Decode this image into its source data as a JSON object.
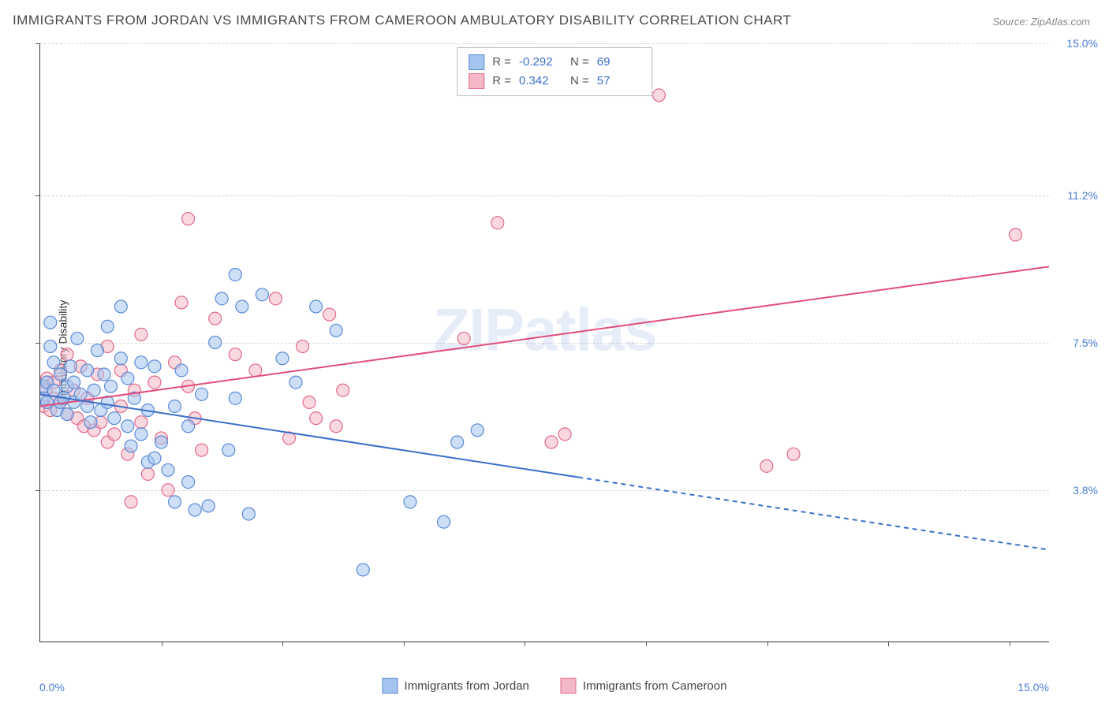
{
  "title": "IMMIGRANTS FROM JORDAN VS IMMIGRANTS FROM CAMEROON AMBULATORY DISABILITY CORRELATION CHART",
  "source": "Source: ZipAtlas.com",
  "watermark": {
    "bold": "ZIP",
    "light": "atlas"
  },
  "ylabel": "Ambulatory Disability",
  "axes": {
    "xlim": [
      0,
      15
    ],
    "ylim": [
      0,
      15
    ],
    "x_tick_positions_pct": [
      12,
      24,
      36,
      48,
      60,
      72,
      84,
      96
    ],
    "y_gridlines": [
      {
        "value": 3.8,
        "label": "3.8%"
      },
      {
        "value": 7.5,
        "label": "7.5%"
      },
      {
        "value": 11.2,
        "label": "11.2%"
      },
      {
        "value": 15.0,
        "label": "15.0%"
      }
    ],
    "xtick_left": "0.0%",
    "xtick_right": "15.0%"
  },
  "colors": {
    "series_a_fill": "#a3c4ef",
    "series_a_stroke": "#5b8ad6",
    "series_b_fill": "#f5b8c7",
    "series_b_stroke": "#e06a8a",
    "grid": "#d8d8d8",
    "axis": "#333333",
    "ytick_text": "#4a7dd4",
    "legend_stat": "#3b6fc9"
  },
  "legend_top": {
    "rows": [
      {
        "swatch_fill": "#a3c4ef",
        "swatch_stroke": "#5b8ad6",
        "r_label": "R =",
        "r_value": "-0.292",
        "n_label": "N =",
        "n_value": "69"
      },
      {
        "swatch_fill": "#f5b8c7",
        "swatch_stroke": "#e06a8a",
        "r_label": "R =",
        "r_value": " 0.342",
        "n_label": "N =",
        "n_value": "57"
      }
    ]
  },
  "legend_bottom": {
    "items": [
      {
        "swatch_fill": "#a3c4ef",
        "swatch_stroke": "#5b8ad6",
        "label": "Immigrants from Jordan"
      },
      {
        "swatch_fill": "#f5b8c7",
        "swatch_stroke": "#e06a8a",
        "label": "Immigrants from Cameroon"
      }
    ]
  },
  "trendlines": {
    "series_a": {
      "x1": 0,
      "y1": 6.2,
      "x2": 15,
      "y2": 2.3,
      "solid_until_x": 8.0,
      "color": "#3b6fc9",
      "width": 2
    },
    "series_b": {
      "x1": 0,
      "y1": 5.9,
      "x2": 15,
      "y2": 9.4,
      "color": "#e24d7a",
      "width": 2
    }
  },
  "marker_radius": 8,
  "marker_opacity": 0.55,
  "series_a_points": [
    [
      0.05,
      6.1
    ],
    [
      0.05,
      6.4
    ],
    [
      0.1,
      6.0
    ],
    [
      0.1,
      6.5
    ],
    [
      0.15,
      7.4
    ],
    [
      0.15,
      8.0
    ],
    [
      0.2,
      6.3
    ],
    [
      0.2,
      7.0
    ],
    [
      0.25,
      5.8
    ],
    [
      0.3,
      6.0
    ],
    [
      0.3,
      6.7
    ],
    [
      0.35,
      6.1
    ],
    [
      0.4,
      6.4
    ],
    [
      0.4,
      5.7
    ],
    [
      0.45,
      6.9
    ],
    [
      0.5,
      6.0
    ],
    [
      0.5,
      6.5
    ],
    [
      0.55,
      7.6
    ],
    [
      0.6,
      6.2
    ],
    [
      0.7,
      5.9
    ],
    [
      0.7,
      6.8
    ],
    [
      0.75,
      5.5
    ],
    [
      0.8,
      6.3
    ],
    [
      0.85,
      7.3
    ],
    [
      0.9,
      5.8
    ],
    [
      0.95,
      6.7
    ],
    [
      1.0,
      6.0
    ],
    [
      1.0,
      7.9
    ],
    [
      1.05,
      6.4
    ],
    [
      1.1,
      5.6
    ],
    [
      1.2,
      7.1
    ],
    [
      1.2,
      8.4
    ],
    [
      1.3,
      5.4
    ],
    [
      1.3,
      6.6
    ],
    [
      1.35,
      4.9
    ],
    [
      1.4,
      6.1
    ],
    [
      1.5,
      5.2
    ],
    [
      1.5,
      7.0
    ],
    [
      1.6,
      5.8
    ],
    [
      1.6,
      4.5
    ],
    [
      1.7,
      4.6
    ],
    [
      1.7,
      6.9
    ],
    [
      1.8,
      5.0
    ],
    [
      1.9,
      4.3
    ],
    [
      2.0,
      5.9
    ],
    [
      2.0,
      3.5
    ],
    [
      2.1,
      6.8
    ],
    [
      2.2,
      4.0
    ],
    [
      2.2,
      5.4
    ],
    [
      2.3,
      3.3
    ],
    [
      2.4,
      6.2
    ],
    [
      2.5,
      3.4
    ],
    [
      2.6,
      7.5
    ],
    [
      2.7,
      8.6
    ],
    [
      2.8,
      4.8
    ],
    [
      2.9,
      6.1
    ],
    [
      2.9,
      9.2
    ],
    [
      3.0,
      8.4
    ],
    [
      3.1,
      3.2
    ],
    [
      3.3,
      8.7
    ],
    [
      3.6,
      7.1
    ],
    [
      3.8,
      6.5
    ],
    [
      4.1,
      8.4
    ],
    [
      4.4,
      7.8
    ],
    [
      4.8,
      1.8
    ],
    [
      5.5,
      3.5
    ],
    [
      6.0,
      3.0
    ],
    [
      6.2,
      5.0
    ],
    [
      6.5,
      5.3
    ]
  ],
  "series_b_points": [
    [
      0.05,
      5.9
    ],
    [
      0.08,
      6.3
    ],
    [
      0.1,
      6.6
    ],
    [
      0.15,
      5.8
    ],
    [
      0.2,
      6.1
    ],
    [
      0.2,
      6.5
    ],
    [
      0.3,
      6.0
    ],
    [
      0.3,
      6.8
    ],
    [
      0.4,
      5.7
    ],
    [
      0.4,
      7.2
    ],
    [
      0.5,
      6.3
    ],
    [
      0.55,
      5.6
    ],
    [
      0.6,
      6.9
    ],
    [
      0.65,
      5.4
    ],
    [
      0.7,
      6.1
    ],
    [
      0.8,
      5.3
    ],
    [
      0.85,
      6.7
    ],
    [
      0.9,
      5.5
    ],
    [
      1.0,
      5.0
    ],
    [
      1.0,
      7.4
    ],
    [
      1.1,
      5.2
    ],
    [
      1.2,
      6.8
    ],
    [
      1.2,
      5.9
    ],
    [
      1.3,
      4.7
    ],
    [
      1.35,
      3.5
    ],
    [
      1.4,
      6.3
    ],
    [
      1.5,
      5.5
    ],
    [
      1.5,
      7.7
    ],
    [
      1.6,
      4.2
    ],
    [
      1.7,
      6.5
    ],
    [
      1.8,
      5.1
    ],
    [
      1.9,
      3.8
    ],
    [
      2.0,
      7.0
    ],
    [
      2.1,
      8.5
    ],
    [
      2.2,
      6.4
    ],
    [
      2.2,
      10.6
    ],
    [
      2.3,
      5.6
    ],
    [
      2.4,
      4.8
    ],
    [
      2.6,
      8.1
    ],
    [
      2.9,
      7.2
    ],
    [
      3.2,
      6.8
    ],
    [
      3.5,
      8.6
    ],
    [
      3.7,
      5.1
    ],
    [
      3.9,
      7.4
    ],
    [
      4.0,
      6.0
    ],
    [
      4.1,
      5.6
    ],
    [
      4.3,
      8.2
    ],
    [
      4.4,
      5.4
    ],
    [
      4.5,
      6.3
    ],
    [
      6.3,
      7.6
    ],
    [
      6.8,
      10.5
    ],
    [
      7.6,
      5.0
    ],
    [
      7.8,
      5.2
    ],
    [
      9.2,
      13.7
    ],
    [
      10.8,
      4.4
    ],
    [
      11.2,
      4.7
    ],
    [
      14.5,
      10.2
    ]
  ]
}
